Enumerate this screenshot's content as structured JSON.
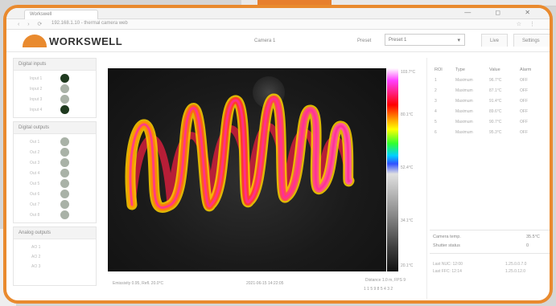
{
  "browser": {
    "tab_title": "Workswell",
    "url": "192.168.1.10 - thermal camera web",
    "window_controls": "— ◻ ✕"
  },
  "header": {
    "logo_text": "WORKSWELL",
    "center_text": "Camera 1",
    "select_label": "Preset",
    "select_value": "Preset 1",
    "tabs": [
      "Live",
      "Settings"
    ]
  },
  "sidebar": {
    "digital_inputs": {
      "title": "Digital inputs",
      "items": [
        {
          "label": "Input 1",
          "state": "on"
        },
        {
          "label": "Input 2",
          "state": "off"
        },
        {
          "label": "Input 3",
          "state": "off"
        },
        {
          "label": "Input 4",
          "state": "on"
        }
      ]
    },
    "digital_outputs": {
      "title": "Digital outputs",
      "items": [
        {
          "label": "Out 1",
          "state": "off"
        },
        {
          "label": "Out 2",
          "state": "off"
        },
        {
          "label": "Out 3",
          "state": "off"
        },
        {
          "label": "Out 4",
          "state": "off"
        },
        {
          "label": "Out 5",
          "state": "off"
        },
        {
          "label": "Out 6",
          "state": "off"
        },
        {
          "label": "Out 7",
          "state": "off"
        },
        {
          "label": "Out 8",
          "state": "off"
        }
      ]
    },
    "analog_outputs": {
      "title": "Analog outputs",
      "items": [
        "AO 1",
        "AO 2",
        "AO 3"
      ]
    }
  },
  "palette": {
    "max": "103.7°C",
    "mid_high": "80.1°C",
    "mid": "52.4°C",
    "mid_low": "34.1°C",
    "min": "20.1°C"
  },
  "image_status": {
    "left": "Emissivity 0.95, Refl. 20.0°C",
    "center": "2021-06-15 14:22:05",
    "right": "Distance 1.0 m, FPS 9",
    "right2": "1 1 5 9 8 5 4 3 2"
  },
  "measurements": {
    "columns": [
      "ROI",
      "Type",
      "Value",
      "Alarm"
    ],
    "rows": [
      [
        "1",
        "Maximum",
        "96.7°C",
        "OFF"
      ],
      [
        "2",
        "Maximum",
        "87.1°C",
        "OFF"
      ],
      [
        "3",
        "Maximum",
        "91.4°C",
        "OFF"
      ],
      [
        "4",
        "Maximum",
        "89.6°C",
        "OFF"
      ],
      [
        "5",
        "Maximum",
        "90.7°C",
        "OFF"
      ],
      [
        "6",
        "Maximum",
        "95.3°C",
        "OFF"
      ]
    ]
  },
  "summary": {
    "label1": "Camera temp.",
    "value1": "35.5°C",
    "label2": "Shutter status",
    "value2": "0",
    "line1_left": "Last NUC: 12:00",
    "line1_right": "1.25.0.0.7.0",
    "line2_left": "Last FFC: 12:14",
    "line2_right": "1.25.0.12.0"
  },
  "colors": {
    "frame_accent": "#e98a2e",
    "led_on": "#1f3a1f",
    "led_off": "#a9b2a7"
  }
}
